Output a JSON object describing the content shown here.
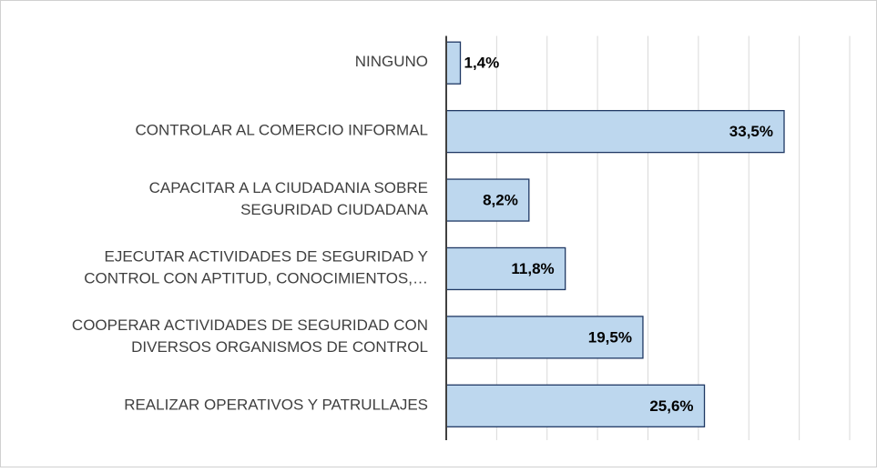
{
  "chart_data": {
    "type": "barh",
    "categories": [
      [
        "NINGUNO"
      ],
      [
        "CONTROLAR AL COMERCIO INFORMAL"
      ],
      [
        "CAPACITAR A LA CIUDADANIA SOBRE",
        "SEGURIDAD CIUDADANA"
      ],
      [
        "EJECUTAR ACTIVIDADES DE SEGURIDAD Y",
        "CONTROL CON APTITUD, CONOCIMIENTOS,…"
      ],
      [
        "COOPERAR ACTIVIDADES DE SEGURIDAD CON",
        "DIVERSOS ORGANISMOS DE CONTROL"
      ],
      [
        "REALIZAR OPERATIVOS Y PATRULLAJES"
      ]
    ],
    "values": [
      1.4,
      33.5,
      8.2,
      11.8,
      19.5,
      25.6
    ],
    "value_labels": [
      "1,4%",
      "33,5%",
      "8,2%",
      "11,8%",
      "19,5%",
      "25,6%"
    ],
    "color": "#bdd7ee",
    "edge_color": "#1f3864",
    "xlim": [
      0,
      40
    ],
    "xticks": [
      0,
      5,
      10,
      15,
      20,
      25,
      30,
      35,
      40
    ],
    "grid": true
  }
}
